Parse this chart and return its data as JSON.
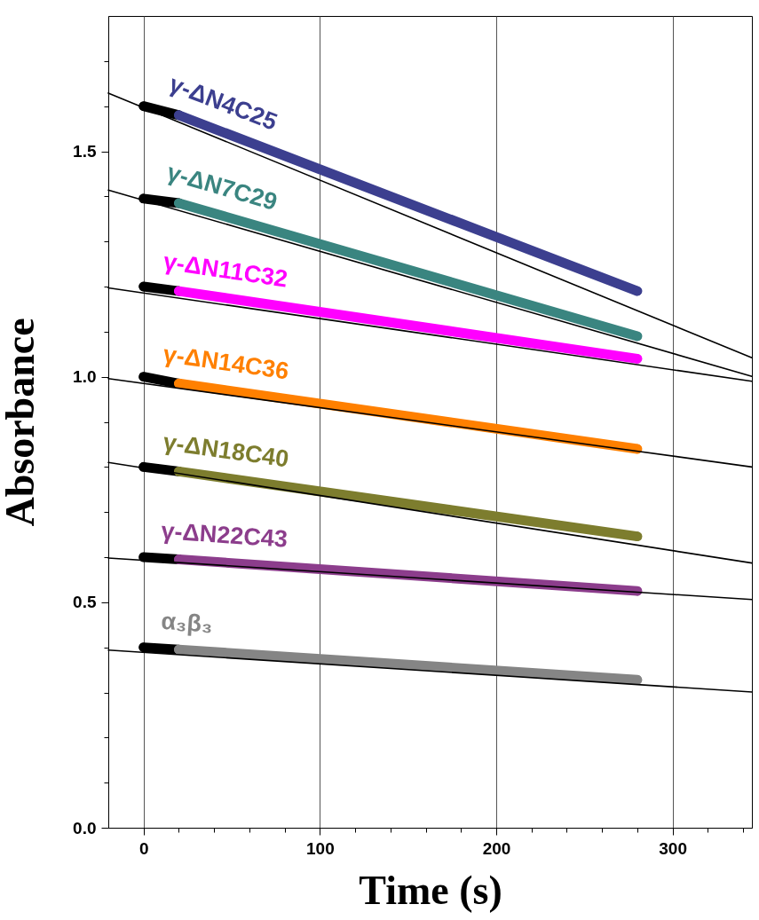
{
  "chart_data": {
    "type": "line",
    "xlabel": "Time (s)",
    "ylabel": "Absorbance",
    "xlim": [
      -20,
      345
    ],
    "ylim": [
      0,
      1.8
    ],
    "xticks": [
      0,
      {
        "value": 20,
        "label": null
      },
      {
        "value": 40,
        "label": null
      },
      {
        "value": 60,
        "label": null
      },
      {
        "value": 80,
        "label": null
      },
      100,
      {
        "value": 120,
        "label": null
      },
      {
        "value": 140,
        "label": null
      },
      {
        "value": 160,
        "label": null
      },
      {
        "value": 180,
        "label": null
      },
      200,
      {
        "value": 220,
        "label": null
      },
      {
        "value": 240,
        "label": null
      },
      {
        "value": 260,
        "label": null
      },
      {
        "value": 280,
        "label": null
      },
      300,
      {
        "value": 320,
        "label": null
      },
      {
        "value": 340,
        "label": null
      }
    ],
    "yticks": [
      {
        "value": 0,
        "label": "0.0"
      },
      {
        "value": 0.1,
        "label": null
      },
      {
        "value": 0.2,
        "label": null
      },
      {
        "value": 0.3,
        "label": null
      },
      {
        "value": 0.4,
        "label": null
      },
      0.5,
      {
        "value": 0.6,
        "label": null
      },
      {
        "value": 0.7,
        "label": null
      },
      {
        "value": 0.8,
        "label": null
      },
      {
        "value": 0.9,
        "label": null
      },
      {
        "value": 1,
        "label": "1.0"
      },
      {
        "value": 1.1,
        "label": null
      },
      {
        "value": 1.2,
        "label": null
      },
      {
        "value": 1.3,
        "label": null
      },
      {
        "value": 1.4,
        "label": null
      },
      1.5,
      {
        "value": 1.6,
        "label": null
      },
      {
        "value": 1.7,
        "label": null
      }
    ],
    "grid": "x",
    "series": [
      {
        "color": "#000000",
        "marker": "circle",
        "x": [
          0,
          20
        ],
        "values": [
          1.6,
          1.58
        ]
      },
      {
        "name": "γ-ΔN4C25",
        "color": "#3c3f8f",
        "marker": "circle",
        "x": [
          20,
          280
        ],
        "values": [
          1.58,
          1.19
        ]
      },
      {
        "color": "#000000",
        "marker": "circle",
        "x": [
          0,
          20
        ],
        "values": [
          1.395,
          1.385
        ]
      },
      {
        "name": "γ-ΔN7C29",
        "color": "#3a8580",
        "marker": "circle",
        "x": [
          20,
          280
        ],
        "values": [
          1.385,
          1.09
        ]
      },
      {
        "color": "#000000",
        "marker": "circle",
        "x": [
          0,
          20
        ],
        "values": [
          1.2,
          1.19
        ]
      },
      {
        "name": "γ-ΔN11C32",
        "color": "#ff00ff",
        "marker": "circle",
        "x": [
          20,
          280
        ],
        "values": [
          1.19,
          1.04
        ]
      },
      {
        "color": "#000000",
        "marker": "circle",
        "x": [
          0,
          20
        ],
        "values": [
          1.0,
          0.985
        ]
      },
      {
        "name": "γ-ΔN14C36",
        "color": "#ff8000",
        "marker": "circle",
        "x": [
          20,
          280
        ],
        "values": [
          0.985,
          0.84
        ]
      },
      {
        "color": "#000000",
        "marker": "circle",
        "x": [
          0,
          20
        ],
        "values": [
          0.8,
          0.79
        ]
      },
      {
        "name": "γ-ΔN18C40",
        "color": "#7d7d2e",
        "marker": "circle",
        "x": [
          20,
          280
        ],
        "values": [
          0.79,
          0.646
        ]
      },
      {
        "color": "#000000",
        "marker": "circle",
        "x": [
          0,
          20
        ],
        "values": [
          0.6,
          0.595
        ]
      },
      {
        "name": "γ-ΔN22C43",
        "color": "#8c3d8c",
        "marker": "circle",
        "x": [
          20,
          280
        ],
        "values": [
          0.595,
          0.525
        ]
      },
      {
        "color": "#000000",
        "marker": "circle",
        "x": [
          0,
          20
        ],
        "values": [
          0.4,
          0.395
        ]
      },
      {
        "name": "α₃β₃",
        "color": "#858585",
        "marker": "circle",
        "x": [
          20,
          280
        ],
        "values": [
          0.395,
          0.328
        ]
      },
      {
        "color": "#000000",
        "marker": "none",
        "x": [
          -20,
          345
        ],
        "values": [
          1.629,
          1.042
        ]
      },
      {
        "color": "#000000",
        "marker": "none",
        "x": [
          -20,
          345
        ],
        "values": [
          1.414,
          1.001
        ]
      },
      {
        "color": "#000000",
        "marker": "none",
        "x": [
          -20,
          345
        ],
        "values": [
          1.197,
          0.99
        ]
      },
      {
        "color": "#000000",
        "marker": "none",
        "x": [
          -20,
          345
        ],
        "values": [
          0.996,
          0.8
        ]
      },
      {
        "color": "#000000",
        "marker": "none",
        "x": [
          -20,
          345
        ],
        "values": [
          0.81,
          0.587
        ]
      },
      {
        "color": "#000000",
        "marker": "none",
        "x": [
          -20,
          345
        ],
        "values": [
          0.598,
          0.506
        ]
      },
      {
        "color": "#000000",
        "marker": "none",
        "x": [
          -20,
          345
        ],
        "values": [
          0.394,
          0.301
        ]
      }
    ]
  }
}
